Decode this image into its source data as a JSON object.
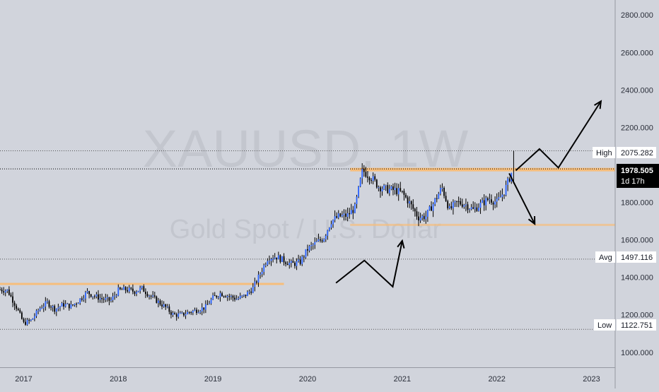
{
  "watermark": {
    "symbol": "XAUUSD, 1W",
    "description": "Gold Spot / U.S. Dollar"
  },
  "chart_data": {
    "type": "candlestick",
    "symbol": "XAUUSD",
    "interval": "1W",
    "y_axis": {
      "ticks": [
        "2800.000",
        "2600.000",
        "2400.000",
        "2200.000",
        "1800.000",
        "1600.000",
        "1400.000",
        "1200.000",
        "1000.000"
      ],
      "tick_values": [
        2800,
        2600,
        2400,
        2200,
        1800,
        1600,
        1400,
        1200,
        1000
      ],
      "range": [
        920,
        2880
      ]
    },
    "x_axis": {
      "ticks": [
        "2017",
        "2018",
        "2019",
        "2020",
        "2021",
        "2022",
        "2023"
      ],
      "tick_values": [
        2017.0,
        2018.0,
        2019.0,
        2020.0,
        2021.0,
        2022.0,
        2023.0
      ],
      "range": [
        2016.75,
        2023.25
      ]
    },
    "price_labels": {
      "high": {
        "label": "High",
        "value": "2075.282"
      },
      "current": {
        "value": "1978.505",
        "countdown": "1d 17h"
      },
      "avg": {
        "label": "Avg",
        "value": "1497.116"
      },
      "low": {
        "label": "Low",
        "value": "1122.751"
      }
    },
    "horizontal_lines": [
      {
        "kind": "resistance",
        "price": 1975,
        "x_start": 2020.45,
        "x_end": 2023.25,
        "color": "#f6be7c"
      },
      {
        "kind": "support",
        "price": 1680,
        "x_start": 2020.45,
        "x_end": 2023.25,
        "color": "#f6be7c"
      },
      {
        "kind": "support",
        "price": 1365,
        "x_start": 2016.75,
        "x_end": 2019.75,
        "color": "#f6be7c"
      }
    ],
    "arrows": [
      {
        "points": [
          [
            2020.3,
            1370
          ],
          [
            2020.6,
            1490
          ],
          [
            2020.9,
            1350
          ],
          [
            2021.0,
            1595
          ]
        ],
        "color": "#000000"
      },
      {
        "points": [
          [
            2022.2,
            1970
          ],
          [
            2022.45,
            2085
          ],
          [
            2022.65,
            1985
          ],
          [
            2023.1,
            2340
          ]
        ],
        "color": "#000000"
      },
      {
        "points": [
          [
            2022.13,
            1955
          ],
          [
            2022.4,
            1685
          ]
        ],
        "color": "#000000"
      }
    ],
    "series": [
      {
        "x": [
          2016.75,
          2016.83,
          2016.92,
          2017.0,
          2017.08,
          2017.17,
          2017.25,
          2017.33,
          2017.42,
          2017.5,
          2017.58,
          2017.67,
          2017.75,
          2017.83,
          2017.92,
          2018.0,
          2018.08,
          2018.17,
          2018.25,
          2018.33,
          2018.42,
          2018.5,
          2018.58,
          2018.67,
          2018.75,
          2018.83,
          2018.92,
          2019.0,
          2019.08,
          2019.17,
          2019.25,
          2019.33,
          2019.42,
          2019.5,
          2019.58,
          2019.67,
          2019.75,
          2019.83,
          2019.92,
          2020.0,
          2020.08,
          2020.17,
          2020.25,
          2020.33,
          2020.42,
          2020.5,
          2020.58,
          2020.67,
          2020.75,
          2020.83,
          2020.92,
          2021.0,
          2021.08,
          2021.17,
          2021.25,
          2021.33,
          2021.42,
          2021.5,
          2021.58,
          2021.67,
          2021.75,
          2021.83,
          2021.92,
          2022.0,
          2022.08,
          2022.17
        ],
        "values": [
          1335,
          1330,
          1245,
          1155,
          1170,
          1235,
          1265,
          1230,
          1255,
          1245,
          1275,
          1320,
          1300,
          1285,
          1275,
          1330,
          1335,
          1325,
          1340,
          1305,
          1270,
          1240,
          1200,
          1200,
          1215,
          1225,
          1240,
          1290,
          1315,
          1300,
          1285,
          1300,
          1340,
          1420,
          1505,
          1510,
          1490,
          1470,
          1480,
          1550,
          1580,
          1610,
          1700,
          1725,
          1730,
          1770,
          1970,
          1935,
          1885,
          1870,
          1865,
          1850,
          1795,
          1720,
          1725,
          1795,
          1880,
          1760,
          1800,
          1790,
          1760,
          1790,
          1820,
          1800,
          1860,
          1978
        ]
      }
    ]
  }
}
